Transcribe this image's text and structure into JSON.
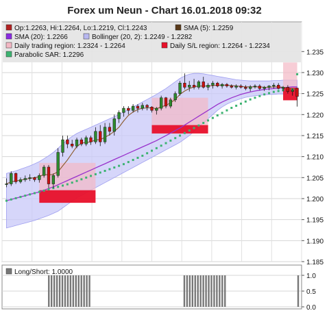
{
  "title": "Forex um Neun - Chart 16.01.2018 09:32",
  "legend": [
    {
      "text": "Op:1.2263, Hi:1.2264, Lo:1.2219, Cl:1.2243",
      "color": "#b22222"
    },
    {
      "text": "SMA (5): 1.2259",
      "color": "#5a3a1a"
    },
    {
      "text": "SMA (20): 1.2266",
      "color": "#8a2be2"
    },
    {
      "text": "Bollinger (20, 2): 1.2249 - 1.2282",
      "color": "#b8b8f0"
    },
    {
      "text": "Daily trading region: 1.2324 - 1.2264",
      "color": "#f3b8c4"
    },
    {
      "text": "Daily S/L region: 1.2264 - 1.2234",
      "color": "#e8102a"
    },
    {
      "text": "Parabolic SAR: 1.2296",
      "color": "#3cb371"
    }
  ],
  "lower_legend": {
    "text": "Long/Short: 1.0000",
    "color": "#777777"
  },
  "chart_data": [
    {
      "type": "candlestick",
      "title": "Forex um Neun - Chart 16.01.2018 09:32",
      "ylim": [
        1.185,
        1.237
      ],
      "yticks": [
        "1.185",
        "1.190",
        "1.195",
        "1.200",
        "1.205",
        "1.210",
        "1.215",
        "1.220",
        "1.225",
        "1.230",
        "1.235"
      ],
      "grid": true,
      "colors": {
        "up": "#2e8b2e",
        "down": "#cc1111",
        "sma5": "#8b5a2b",
        "sma20": "#9932cc",
        "bollinger": "#c8c8f8",
        "sar": "#3cb371",
        "trading_region": "#f3b8c4",
        "sl_region": "#e8102a"
      },
      "series": [
        {
          "name": "Op:1.2263, Hi:1.2264, Lo:1.2219, Cl:1.2243",
          "ohlc": [
            [
              1.2035,
              1.2048,
              1.2027,
              1.2035
            ],
            [
              1.2035,
              1.2065,
              1.203,
              1.206
            ],
            [
              1.206,
              1.2062,
              1.2035,
              1.204
            ],
            [
              1.204,
              1.205,
              1.2036,
              1.2045
            ],
            [
              1.2045,
              1.2055,
              1.204,
              1.2048
            ],
            [
              1.2048,
              1.2058,
              1.2042,
              1.205
            ],
            [
              1.205,
              1.2052,
              1.204,
              1.2045
            ],
            [
              1.2045,
              1.206,
              1.2038,
              1.2055
            ],
            [
              1.2055,
              1.208,
              1.205,
              1.2075
            ],
            [
              1.2075,
              1.208,
              1.2025,
              1.2035
            ],
            [
              1.2035,
              1.206,
              1.2025,
              1.2055
            ],
            [
              1.2055,
              1.212,
              1.205,
              1.211
            ],
            [
              1.211,
              1.215,
              1.21,
              1.214
            ],
            [
              1.214,
              1.215,
              1.212,
              1.213
            ],
            [
              1.213,
              1.214,
              1.212,
              1.2125
            ],
            [
              1.2125,
              1.2145,
              1.212,
              1.214
            ],
            [
              1.214,
              1.2145,
              1.2125,
              1.213
            ],
            [
              1.213,
              1.215,
              1.2125,
              1.2145
            ],
            [
              1.2145,
              1.215,
              1.2128,
              1.2135
            ],
            [
              1.2135,
              1.217,
              1.213,
              1.216
            ],
            [
              1.216,
              1.2175,
              1.2125,
              1.2135
            ],
            [
              1.2135,
              1.218,
              1.213,
              1.217
            ],
            [
              1.217,
              1.218,
              1.215,
              1.216
            ],
            [
              1.216,
              1.22,
              1.215,
              1.219
            ],
            [
              1.219,
              1.221,
              1.218,
              1.2205
            ],
            [
              1.2205,
              1.222,
              1.2195,
              1.2215
            ],
            [
              1.2215,
              1.222,
              1.22,
              1.221
            ],
            [
              1.221,
              1.2225,
              1.2205,
              1.222
            ],
            [
              1.222,
              1.2225,
              1.2205,
              1.2215
            ],
            [
              1.2215,
              1.2228,
              1.221,
              1.2222
            ],
            [
              1.2222,
              1.2225,
              1.221,
              1.2218
            ],
            [
              1.2218,
              1.222,
              1.2205,
              1.221
            ],
            [
              1.221,
              1.2218,
              1.22,
              1.2215
            ],
            [
              1.2215,
              1.2245,
              1.221,
              1.224
            ],
            [
              1.224,
              1.2242,
              1.2215,
              1.222
            ],
            [
              1.222,
              1.224,
              1.2215,
              1.2235
            ],
            [
              1.2235,
              1.2255,
              1.223,
              1.225
            ],
            [
              1.225,
              1.228,
              1.2245,
              1.2275
            ],
            [
              1.2275,
              1.2298,
              1.226,
              1.2265
            ],
            [
              1.2265,
              1.228,
              1.2255,
              1.227
            ],
            [
              1.227,
              1.2285,
              1.226,
              1.2265
            ],
            [
              1.2265,
              1.2282,
              1.226,
              1.2278
            ],
            [
              1.2278,
              1.229,
              1.2262,
              1.2265
            ],
            [
              1.2265,
              1.2275,
              1.2258,
              1.227
            ],
            [
              1.227,
              1.228,
              1.2262,
              1.2275
            ],
            [
              1.2275,
              1.2278,
              1.2265,
              1.2268
            ],
            [
              1.2268,
              1.2275,
              1.2262,
              1.2272
            ],
            [
              1.2272,
              1.2275,
              1.2264,
              1.2268
            ],
            [
              1.2268,
              1.2272,
              1.2262,
              1.2265
            ],
            [
              1.2265,
              1.2272,
              1.226,
              1.2268
            ],
            [
              1.2268,
              1.2272,
              1.2262,
              1.2265
            ],
            [
              1.2265,
              1.227,
              1.2258,
              1.2262
            ],
            [
              1.2262,
              1.227,
              1.2255,
              1.2266
            ],
            [
              1.2266,
              1.2272,
              1.2262,
              1.2268
            ],
            [
              1.2268,
              1.2272,
              1.2258,
              1.2262
            ],
            [
              1.2262,
              1.2268,
              1.2256,
              1.2265
            ],
            [
              1.2265,
              1.227,
              1.2258,
              1.2268
            ],
            [
              1.2268,
              1.2275,
              1.2262,
              1.227
            ],
            [
              1.227,
              1.2275,
              1.226,
              1.2262
            ],
            [
              1.2262,
              1.2268,
              1.2255,
              1.2265
            ],
            [
              1.2265,
              1.227,
              1.225,
              1.2255
            ],
            [
              1.2255,
              1.2262,
              1.2245,
              1.2258
            ],
            [
              1.2263,
              1.2264,
              1.2219,
              1.2243
            ]
          ]
        },
        {
          "name": "SMA (5): 1.2259",
          "values": [
            1.2035,
            1.204,
            1.2042,
            1.2044,
            1.2046,
            1.2048,
            1.205,
            1.2052,
            1.2058,
            1.2056,
            1.2058,
            1.2064,
            1.2078,
            1.2092,
            1.2108,
            1.2124,
            1.2132,
            1.2134,
            1.2135,
            1.214,
            1.214,
            1.2146,
            1.2152,
            1.216,
            1.217,
            1.2185,
            1.2198,
            1.2206,
            1.2212,
            1.2215,
            1.2216,
            1.2216,
            1.2214,
            1.2218,
            1.2222,
            1.2228,
            1.2236,
            1.2248,
            1.2256,
            1.2262,
            1.2266,
            1.2268,
            1.2268,
            1.2268,
            1.2269,
            1.227,
            1.227,
            1.227,
            1.2269,
            1.2268,
            1.2267,
            1.2266,
            1.2266,
            1.2266,
            1.2266,
            1.2265,
            1.2265,
            1.2266,
            1.2266,
            1.2265,
            1.2263,
            1.2261,
            1.2259
          ]
        },
        {
          "name": "SMA (20): 1.2266",
          "values": [
            1.1995,
            1.1998,
            1.2001,
            1.2004,
            1.2007,
            1.201,
            1.2013,
            1.2016,
            1.202,
            1.2024,
            1.2028,
            1.2033,
            1.2038,
            1.2043,
            1.2048,
            1.2053,
            1.2058,
            1.2063,
            1.2068,
            1.2073,
            1.2078,
            1.2083,
            1.2088,
            1.2093,
            1.2098,
            1.2103,
            1.2108,
            1.2113,
            1.2118,
            1.2123,
            1.2128,
            1.2133,
            1.2138,
            1.2144,
            1.215,
            1.2156,
            1.2162,
            1.2168,
            1.2175,
            1.2182,
            1.2189,
            1.2196,
            1.2203,
            1.221,
            1.2217,
            1.2224,
            1.223,
            1.2235,
            1.224,
            1.2244,
            1.2248,
            1.2251,
            1.2254,
            1.2256,
            1.2258,
            1.226,
            1.2261,
            1.2262,
            1.2263,
            1.2264,
            1.2265,
            1.2266,
            1.2266
          ]
        },
        {
          "name": "Bollinger (20, 2): 1.2249 - 1.2282",
          "upper": [
            1.206,
            1.2063,
            1.2066,
            1.207,
            1.2074,
            1.2078,
            1.2083,
            1.2088,
            1.2095,
            1.2102,
            1.211,
            1.212,
            1.213,
            1.214,
            1.2148,
            1.2155,
            1.216,
            1.2165,
            1.217,
            1.2175,
            1.218,
            1.2185,
            1.219,
            1.2195,
            1.22,
            1.2206,
            1.2212,
            1.2218,
            1.2224,
            1.223,
            1.2236,
            1.2242,
            1.2248,
            1.2255,
            1.2262,
            1.227,
            1.2278,
            1.2286,
            1.2292,
            1.2296,
            1.2298,
            1.2298,
            1.2297,
            1.2295,
            1.2293,
            1.2291,
            1.2289,
            1.2287,
            1.2285,
            1.2283,
            1.2282,
            1.2281,
            1.228,
            1.228,
            1.228,
            1.228,
            1.228,
            1.2281,
            1.2281,
            1.2282,
            1.2282,
            1.2282,
            1.2282
          ],
          "lower": [
            1.193,
            1.1933,
            1.1936,
            1.1939,
            1.1942,
            1.1945,
            1.1948,
            1.1952,
            1.1956,
            1.196,
            1.1965,
            1.197,
            1.1978,
            1.1986,
            1.1994,
            1.2002,
            1.2008,
            1.2014,
            1.202,
            1.2026,
            1.2032,
            1.2038,
            1.2044,
            1.205,
            1.2056,
            1.2062,
            1.2068,
            1.2074,
            1.208,
            1.2086,
            1.2092,
            1.2098,
            1.2104,
            1.211,
            1.2116,
            1.2122,
            1.2128,
            1.2134,
            1.2142,
            1.215,
            1.216,
            1.217,
            1.218,
            1.219,
            1.22,
            1.221,
            1.2218,
            1.2225,
            1.223,
            1.2234,
            1.2238,
            1.2241,
            1.2243,
            1.2245,
            1.2246,
            1.2247,
            1.2248,
            1.2248,
            1.2249,
            1.2249,
            1.2249,
            1.2249,
            1.2249
          ]
        },
        {
          "name": "Parabolic SAR: 1.2296",
          "values": [
            1.1995,
            1.1998,
            1.2001,
            1.2004,
            1.2007,
            1.201,
            1.2013,
            1.2016,
            1.2019,
            1.2022,
            1.2025,
            1.2028,
            1.2031,
            1.2034,
            1.2038,
            1.2042,
            1.2046,
            1.205,
            1.2054,
            1.2058,
            1.2062,
            1.2066,
            1.207,
            1.2074,
            1.2078,
            1.2082,
            1.2087,
            1.2092,
            1.2097,
            1.2102,
            1.2108,
            1.2114,
            1.212,
            1.2126,
            1.2132,
            1.2138,
            1.2144,
            1.215,
            1.2156,
            1.2162,
            1.2168,
            1.2174,
            1.218,
            1.2186,
            1.2192,
            1.2198,
            1.2204,
            1.221,
            1.2216,
            1.2221,
            1.2226,
            1.2231,
            1.2236,
            1.224,
            1.2244,
            1.2248,
            1.2251,
            1.2254,
            1.2256,
            1.2258,
            1.2259,
            1.226,
            1.2296
          ]
        }
      ],
      "regions": [
        {
          "type": "trading",
          "start": 7,
          "end": 19,
          "low": 1.202,
          "high": 1.2085
        },
        {
          "type": "sl",
          "start": 7,
          "end": 19,
          "low": 1.199,
          "high": 1.202
        },
        {
          "type": "trading",
          "start": 31,
          "end": 43,
          "low": 1.2175,
          "high": 1.224
        },
        {
          "type": "sl",
          "start": 31,
          "end": 43,
          "low": 1.2155,
          "high": 1.2175
        },
        {
          "type": "trading",
          "start": 59,
          "end": 62,
          "low": 1.2264,
          "high": 1.2324
        },
        {
          "type": "sl",
          "start": 59,
          "end": 62,
          "low": 1.2234,
          "high": 1.2264
        }
      ]
    },
    {
      "type": "bar",
      "title": "Long/Short: 1.0000",
      "ylim": [
        0,
        1
      ],
      "yticks": [
        "0.0",
        "0.5",
        "1.0"
      ],
      "values": [
        0,
        0,
        0,
        0,
        0,
        0,
        0,
        0,
        0,
        0,
        0,
        0,
        0,
        0,
        0,
        0,
        1,
        1,
        1,
        1,
        1,
        1,
        1,
        1,
        1,
        1,
        1,
        1,
        1,
        1,
        1,
        1,
        0,
        0,
        0,
        0,
        0,
        0,
        0,
        0,
        0,
        0,
        0,
        0,
        0,
        0,
        0,
        0,
        0,
        0,
        0,
        0,
        0,
        0,
        0,
        0,
        0,
        0,
        0,
        0,
        0,
        0,
        0,
        0,
        0,
        0,
        1,
        1,
        1,
        1,
        1,
        1,
        1,
        1,
        1,
        1,
        1,
        1,
        1,
        1,
        1,
        1,
        0,
        0,
        0,
        0,
        0,
        0,
        0,
        0,
        0,
        0,
        0,
        0,
        0,
        0,
        0,
        0,
        0,
        0,
        0,
        0,
        0,
        0,
        0,
        0,
        0,
        0,
        1
      ]
    }
  ]
}
